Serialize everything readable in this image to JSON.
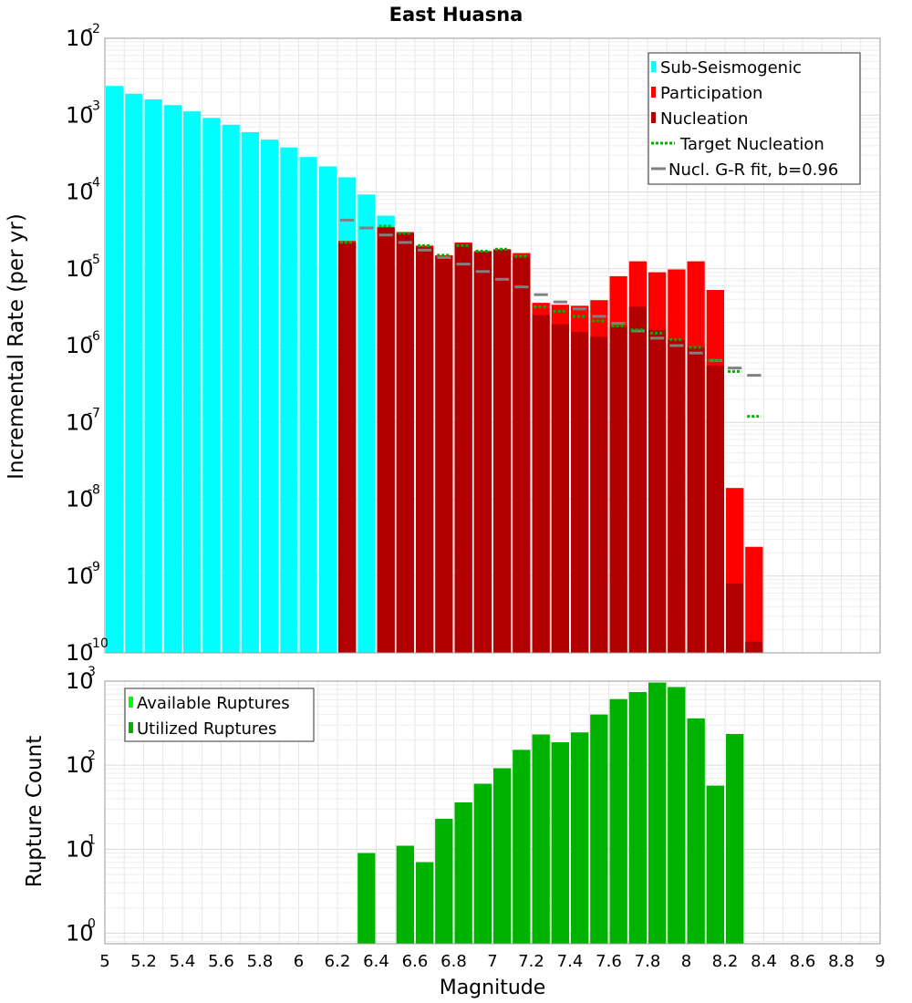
{
  "chart_data": [
    {
      "type": "bar",
      "title": "East Huasna",
      "xlabel": "",
      "ylabel": "Incremental Rate (per yr)",
      "yscale": "log",
      "ylim": [
        1e-10,
        0.01
      ],
      "xlim": [
        5,
        9
      ],
      "bin_width": 0.1,
      "grid": true,
      "legend_position": "top-right",
      "y_tick_labels": [
        {
          "base": "10",
          "exp": "-10",
          "value": 1e-10
        },
        {
          "base": "10",
          "exp": "-9",
          "value": 1e-09
        },
        {
          "base": "10",
          "exp": "-8",
          "value": 1e-08
        },
        {
          "base": "10",
          "exp": "-7",
          "value": 1e-07
        },
        {
          "base": "10",
          "exp": "-6",
          "value": 1e-06
        },
        {
          "base": "10",
          "exp": "-5",
          "value": 1e-05
        },
        {
          "base": "10",
          "exp": "-4",
          "value": 0.0001
        },
        {
          "base": "10",
          "exp": "-3",
          "value": 0.001
        },
        {
          "base": "10",
          "exp": "-2",
          "value": 0.01
        }
      ],
      "series": [
        {
          "name": "Sub-Seismogenic",
          "kind": "bar",
          "color": "#00ffff",
          "x": [
            5.05,
            5.15,
            5.25,
            5.35,
            5.45,
            5.55,
            5.65,
            5.75,
            5.85,
            5.95,
            6.05,
            6.15,
            6.25,
            6.35,
            6.45
          ],
          "values": [
            0.0024,
            0.0019,
            0.0016,
            0.00135,
            0.00112,
            0.00092,
            0.00075,
            0.0006,
            0.00048,
            0.00038,
            0.000285,
            0.000215,
            0.000155,
            9.25e-05,
            4.9e-05
          ]
        },
        {
          "name": "Participation",
          "kind": "bar",
          "color": "#ff0000",
          "x": [
            6.25,
            6.45,
            6.55,
            6.65,
            6.75,
            6.85,
            6.95,
            7.05,
            7.15,
            7.25,
            7.35,
            7.45,
            7.55,
            7.65,
            7.75,
            7.85,
            7.95,
            8.05,
            8.15,
            8.25,
            8.35
          ],
          "values": [
            2.3e-05,
            3.5e-05,
            3e-05,
            2e-05,
            1.5e-05,
            2.2e-05,
            1.7e-05,
            1.8e-05,
            1.6e-05,
            3.6e-06,
            3.4e-06,
            3.3e-06,
            3.9e-06,
            8e-06,
            1.25e-05,
            9e-06,
            9.8e-06,
            1.25e-05,
            5.3e-06,
            1.4e-08,
            2.4e-09
          ]
        },
        {
          "name": "Nucleation",
          "kind": "bar",
          "color": "#b20000",
          "x": [
            6.25,
            6.45,
            6.55,
            6.65,
            6.75,
            6.85,
            6.95,
            7.05,
            7.15,
            7.25,
            7.35,
            7.45,
            7.55,
            7.65,
            7.75,
            7.85,
            7.95,
            8.05,
            8.15,
            8.25,
            8.35
          ],
          "values": [
            2.2e-05,
            3.4e-05,
            2.9e-05,
            1.9e-05,
            1.45e-05,
            2.1e-05,
            1.65e-05,
            1.75e-05,
            1.45e-05,
            2.5e-06,
            1.9e-06,
            1.5e-06,
            1.3e-06,
            1.8e-06,
            3.2e-06,
            1.6e-06,
            1.2e-06,
            9.5e-07,
            5.5e-07,
            8e-10,
            1.4e-10
          ]
        },
        {
          "name": "Target Nucleation",
          "kind": "marker-dotted",
          "color": "#00b200",
          "x": [
            6.25,
            6.45,
            6.55,
            6.65,
            6.75,
            6.85,
            6.95,
            7.05,
            7.15,
            7.25,
            7.35,
            7.45,
            7.55,
            7.65,
            7.75,
            7.85,
            7.95,
            8.05,
            8.15,
            8.25,
            8.35
          ],
          "values": [
            2.2e-05,
            3.6e-05,
            2.9e-05,
            2e-05,
            1.5e-05,
            2e-05,
            1.7e-05,
            1.8e-05,
            1.45e-05,
            3.2e-06,
            2.8e-06,
            2.4e-06,
            2.1e-06,
            1.8e-06,
            1.6e-06,
            1.45e-06,
            1.2e-06,
            9.5e-07,
            6.5e-07,
            4.6e-07,
            1.2e-07
          ]
        },
        {
          "name": "Nucl. G-R fit, b=0.96",
          "kind": "marker-solid",
          "color": "#808080",
          "x": [
            6.25,
            6.35,
            6.45,
            6.55,
            6.65,
            6.75,
            6.85,
            6.95,
            7.05,
            7.15,
            7.25,
            7.35,
            7.45,
            7.55,
            7.65,
            7.75,
            7.85,
            7.95,
            8.05,
            8.15,
            8.25,
            8.35
          ],
          "values": [
            4.3e-05,
            3.4e-05,
            2.75e-05,
            2.2e-05,
            1.75e-05,
            1.4e-05,
            1.15e-05,
            9.2e-06,
            7.3e-06,
            5.8e-06,
            4.6e-06,
            3.7e-06,
            3e-06,
            2.4e-06,
            1.95e-06,
            1.55e-06,
            1.25e-06,
            1e-06,
            8e-07,
            6.4e-07,
            5.1e-07,
            4.1e-07
          ]
        }
      ]
    },
    {
      "type": "bar",
      "title": "",
      "xlabel": "Magnitude",
      "ylabel": "Rupture Count",
      "yscale": "log",
      "ylim": [
        0.75,
        1000
      ],
      "xlim": [
        5,
        9
      ],
      "bin_width": 0.1,
      "grid": true,
      "legend_position": "top-left",
      "x_tick_labels": [
        "5",
        "5.2",
        "5.4",
        "5.6",
        "5.8",
        "6",
        "6.2",
        "6.4",
        "6.6",
        "6.8",
        "7",
        "7.2",
        "7.4",
        "7.6",
        "7.8",
        "8",
        "8.2",
        "8.4",
        "8.6",
        "8.8",
        "9"
      ],
      "y_tick_labels": [
        {
          "base": "10",
          "exp": "0",
          "value": 1
        },
        {
          "base": "10",
          "exp": "1",
          "value": 10
        },
        {
          "base": "10",
          "exp": "2",
          "value": 100
        },
        {
          "base": "10",
          "exp": "3",
          "value": 1000
        }
      ],
      "series": [
        {
          "name": "Available Ruptures",
          "kind": "bar",
          "color": "#00ff00",
          "x": [
            6.35,
            6.55,
            6.65,
            6.75,
            6.85,
            6.95,
            7.05,
            7.15,
            7.25,
            7.35,
            7.45,
            7.55,
            7.65,
            7.75,
            7.85,
            7.95,
            8.05,
            8.15,
            8.25
          ],
          "values": [
            9,
            11,
            7,
            23,
            36,
            60,
            92,
            152,
            232,
            187,
            245,
            400,
            610,
            740,
            960,
            850,
            360,
            57,
            235
          ]
        },
        {
          "name": "Utilized Ruptures",
          "kind": "bar",
          "color": "#00b200",
          "x": [
            6.35,
            6.55,
            6.65,
            6.75,
            6.85,
            6.95,
            7.05,
            7.15,
            7.25,
            7.35,
            7.45,
            7.55,
            7.65,
            7.75,
            7.85,
            7.95,
            8.05,
            8.15,
            8.25
          ],
          "values": [
            9,
            11,
            7,
            23,
            36,
            60,
            92,
            152,
            232,
            187,
            245,
            400,
            610,
            740,
            960,
            850,
            360,
            57,
            235
          ]
        }
      ]
    }
  ]
}
